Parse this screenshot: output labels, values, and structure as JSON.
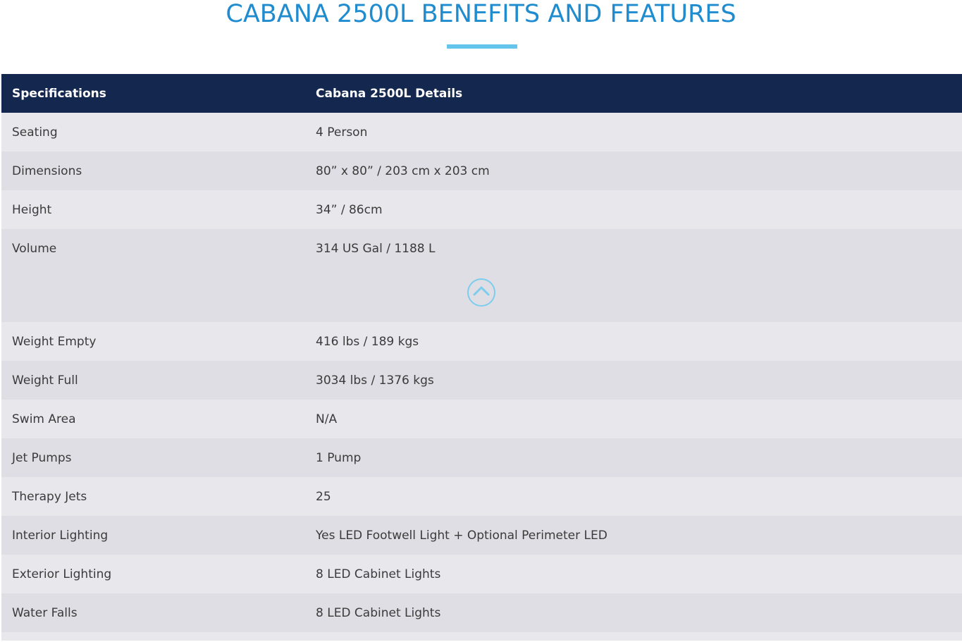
{
  "page": {
    "title": "CABANA 2500L BENEFITS AND FEATURES"
  },
  "table": {
    "headers": [
      "Specifications",
      "Cabana 2500L Details"
    ],
    "rows_top": [
      {
        "label": "Seating",
        "value": "4 Person"
      },
      {
        "label": "Dimensions",
        "value": "80” x 80” / 203 cm x 203 cm"
      },
      {
        "label": "Height",
        "value": "34” / 86cm"
      },
      {
        "label": "Volume",
        "value": "314 US Gal / 1188 L"
      }
    ],
    "rows_bottom": [
      {
        "label": "Weight Empty",
        "value": "416 lbs / 189 kgs"
      },
      {
        "label": "Weight Full",
        "value": "3034 lbs / 1376 kgs"
      },
      {
        "label": "Swim Area",
        "value": "N/A"
      },
      {
        "label": "Jet Pumps",
        "value": "1 Pump"
      },
      {
        "label": "Therapy Jets",
        "value": "25"
      },
      {
        "label": "Interior Lighting",
        "value": "Yes LED Footwell Light + Optional Perimeter LED"
      },
      {
        "label": "Exterior Lighting",
        "value": "8 LED Cabinet Lights"
      },
      {
        "label": "Water Falls",
        "value": "8 LED Cabinet Lights"
      }
    ]
  },
  "scroll_top": {
    "icon": "chevron-up-icon"
  },
  "colors": {
    "title": "#1f8ccf",
    "accent_underline": "#63c4ec",
    "header_bg": "#14274f",
    "row_light": "#e8e8ec",
    "row_dark": "#dedee4"
  }
}
